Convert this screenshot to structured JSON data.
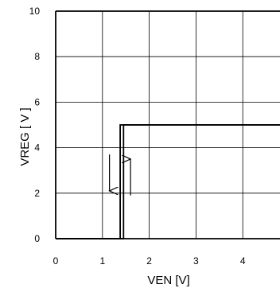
{
  "chart_data": {
    "type": "line",
    "xlabel": "VEN [V]",
    "ylabel": "VREG [ V ]",
    "xlim": [
      0,
      5
    ],
    "ylim": [
      0,
      10
    ],
    "xticks": [
      "0",
      "1",
      "2",
      "3",
      "4"
    ],
    "yticks": [
      "0",
      "2",
      "4",
      "6",
      "8",
      "10"
    ],
    "grid": true,
    "series": [
      {
        "name": "",
        "x": [
          0,
          1.38,
          1.38,
          5
        ],
        "y": [
          0,
          0,
          5,
          5
        ]
      },
      {
        "name": "",
        "x": [
          0,
          1.45,
          1.45,
          5
        ],
        "y": [
          0,
          0,
          5,
          5
        ]
      }
    ],
    "annotations": [
      {
        "type": "arrow",
        "direction": "down",
        "x": 1.15,
        "y_from": 3.7,
        "y_to": 2.1
      },
      {
        "type": "arrow",
        "direction": "up",
        "x": 1.6,
        "y_from": 1.9,
        "y_to": 3.5
      }
    ]
  }
}
